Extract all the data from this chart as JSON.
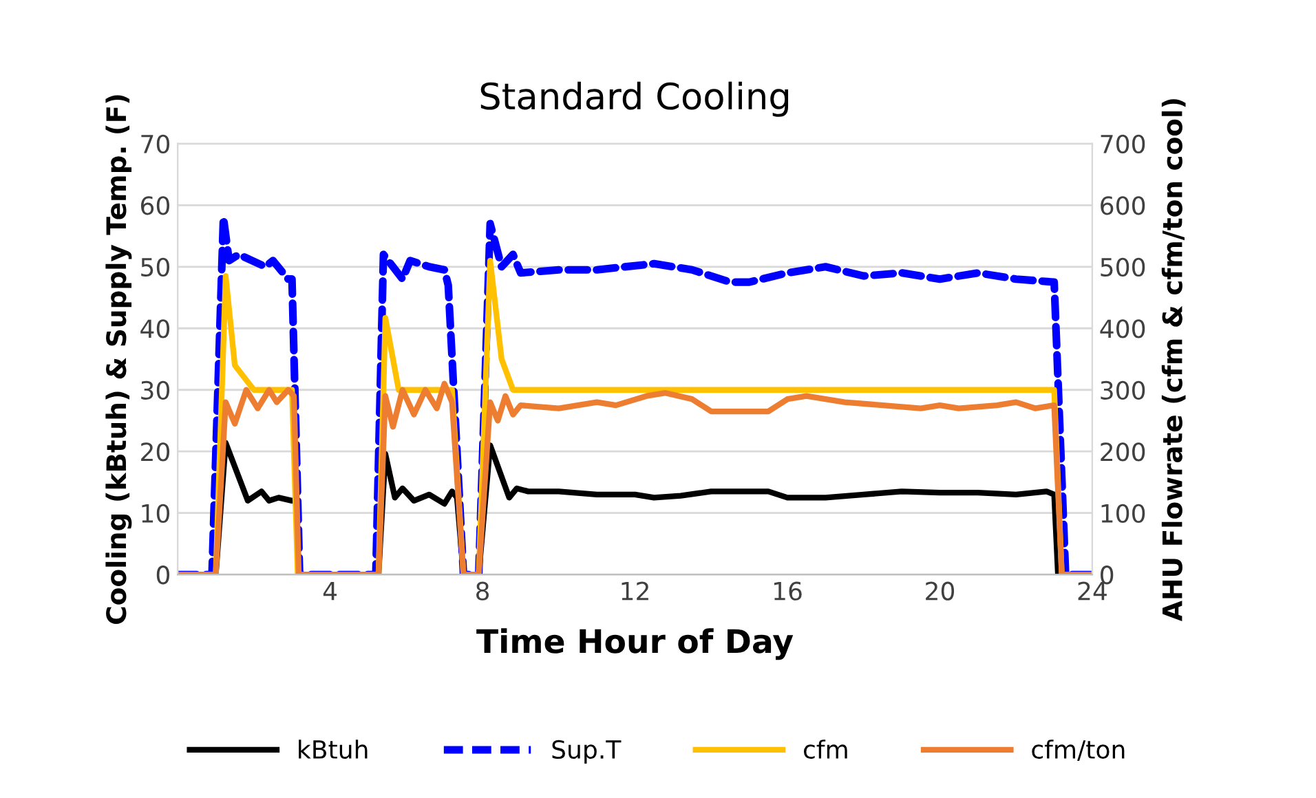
{
  "chart_data": {
    "type": "line",
    "title": "Standard Cooling",
    "xlabel": "Time Hour of Day",
    "ylabel": "Cooling (kBtuh) & Supply Temp. (F)",
    "y2label": "AHU Flowrate (cfm & cfm/ton cool)",
    "xlim": [
      0,
      24
    ],
    "xticks": [
      4,
      8,
      12,
      16,
      20,
      24
    ],
    "ylim": [
      0,
      70
    ],
    "yticks": [
      0,
      10,
      20,
      30,
      40,
      50,
      60,
      70
    ],
    "y2lim": [
      0,
      700
    ],
    "y2ticks": [
      0,
      100,
      200,
      300,
      400,
      500,
      600,
      700
    ],
    "grid": "y",
    "legend": "bottom",
    "series": [
      {
        "name": "kBtuh",
        "color": "#000000",
        "line_style": "solid",
        "x": [
          0,
          1.0,
          1.26,
          1.84,
          2.2,
          2.4,
          2.65,
          3.0,
          3.1,
          3.18,
          5.27,
          5.45,
          5.7,
          5.9,
          6.2,
          6.6,
          7.0,
          7.2,
          7.33,
          7.5,
          7.9,
          8.2,
          8.7,
          8.9,
          9.2,
          10,
          11,
          12,
          12.5,
          13.2,
          14,
          15,
          15.5,
          16,
          17,
          18,
          19,
          20,
          21,
          22,
          22.8,
          23.0,
          23.1,
          24
        ],
        "values": [
          0,
          0,
          21.4,
          12,
          13.5,
          12,
          12.5,
          12,
          12,
          0,
          0,
          19.6,
          12.5,
          14,
          12,
          13,
          11.5,
          13.5,
          12.5,
          0,
          0,
          21,
          12.5,
          14,
          13.5,
          13.5,
          13,
          13,
          12.5,
          12.8,
          13.5,
          13.5,
          13.5,
          12.5,
          12.5,
          13,
          13.5,
          13.3,
          13.3,
          13,
          13.5,
          13,
          0,
          0
        ]
      },
      {
        "name": "Sup.T",
        "color": "#0000ff",
        "line_style": "dashed",
        "x": [
          0,
          0.9,
          1.2,
          1.35,
          1.6,
          2.3,
          2.5,
          2.9,
          3.0,
          3.2,
          5.2,
          5.4,
          5.9,
          6.1,
          6.6,
          7.0,
          7.1,
          7.5,
          7.9,
          8.2,
          8.5,
          8.8,
          9.0,
          10,
          11,
          12.5,
          13.5,
          14.5,
          15,
          16,
          17,
          18,
          19,
          20,
          21,
          22,
          23,
          23.3,
          24
        ],
        "values": [
          0,
          0,
          58,
          51,
          52,
          50,
          51,
          48,
          48,
          0,
          0,
          52,
          48,
          51,
          50,
          49.5,
          47,
          0,
          0,
          57,
          50,
          52,
          49,
          49.5,
          49.5,
          50.5,
          49.5,
          47.5,
          47.5,
          49,
          50,
          48.5,
          49,
          48,
          49,
          48,
          47.5,
          0,
          0
        ]
      },
      {
        "name": "cfm",
        "color": "#ffc000",
        "line_style": "solid",
        "axis": "y2",
        "x": [
          0,
          1.0,
          1.26,
          1.5,
          2.0,
          3.0,
          3.15,
          5.27,
          5.45,
          5.8,
          7.2,
          7.5,
          7.9,
          8.2,
          8.5,
          8.8,
          23.0,
          23.2,
          24
        ],
        "values": [
          0,
          0,
          485,
          340,
          300,
          300,
          0,
          0,
          417,
          300,
          300,
          0,
          0,
          510,
          350,
          300,
          300,
          0,
          0
        ]
      },
      {
        "name": "cfm/ton",
        "color": "#ed7d31",
        "line_style": "solid",
        "axis": "y2",
        "x": [
          0,
          1.0,
          1.26,
          1.5,
          1.8,
          2.1,
          2.4,
          2.6,
          2.9,
          3.05,
          3.18,
          5.27,
          5.45,
          5.65,
          5.9,
          6.2,
          6.5,
          6.8,
          7.0,
          7.2,
          7.5,
          7.9,
          8.2,
          8.4,
          8.6,
          8.8,
          9.0,
          10,
          11,
          11.5,
          12.3,
          12.8,
          13.5,
          14,
          15.5,
          16,
          16.5,
          17.5,
          18.5,
          19.5,
          20,
          20.5,
          21.5,
          22,
          22.5,
          23.0,
          23.2,
          24
        ],
        "values": [
          0,
          0,
          280,
          245,
          300,
          270,
          300,
          280,
          300,
          290,
          0,
          0,
          290,
          240,
          300,
          260,
          300,
          270,
          310,
          280,
          0,
          0,
          280,
          250,
          290,
          260,
          275,
          270,
          280,
          275,
          290,
          295,
          285,
          265,
          265,
          285,
          290,
          280,
          275,
          270,
          275,
          270,
          275,
          280,
          270,
          275,
          0,
          0
        ]
      }
    ]
  }
}
